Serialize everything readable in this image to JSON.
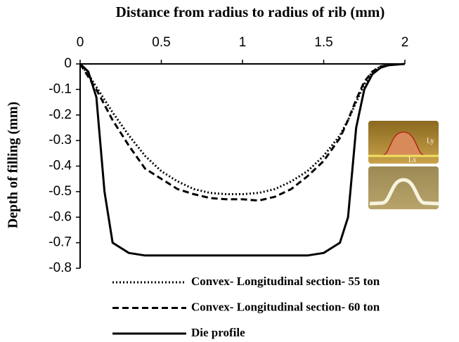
{
  "chart_data": {
    "type": "line",
    "title": "Distance from radius to radius of rib (mm)",
    "y_label": "Depth of filling (mm)",
    "x": [
      0,
      0.05,
      0.1,
      0.15,
      0.2,
      0.3,
      0.4,
      0.5,
      0.6,
      0.7,
      0.8,
      0.9,
      1.0,
      1.1,
      1.2,
      1.3,
      1.4,
      1.5,
      1.6,
      1.65,
      1.7,
      1.75,
      1.8,
      1.85,
      1.9,
      2.0
    ],
    "series": [
      {
        "name": "Convex- Longitudinal section- 55 ton",
        "color": "#000000",
        "dash": "dotted",
        "values": [
          0,
          -0.04,
          -0.09,
          -0.14,
          -0.19,
          -0.28,
          -0.36,
          -0.42,
          -0.46,
          -0.49,
          -0.505,
          -0.51,
          -0.51,
          -0.505,
          -0.49,
          -0.46,
          -0.42,
          -0.36,
          -0.28,
          -0.22,
          -0.15,
          -0.08,
          -0.03,
          -0.01,
          -0.005,
          null
        ]
      },
      {
        "name": "Convex- Longitudinal section- 60 ton",
        "color": "#000000",
        "dash": "dashed",
        "values": [
          0,
          -0.05,
          -0.1,
          -0.16,
          -0.22,
          -0.32,
          -0.41,
          -0.45,
          -0.49,
          -0.51,
          -0.525,
          -0.53,
          -0.53,
          -0.535,
          -0.52,
          -0.49,
          -0.44,
          -0.38,
          -0.29,
          -0.22,
          -0.14,
          -0.07,
          -0.03,
          -0.01,
          -0.005,
          null
        ]
      },
      {
        "name": "Die profile",
        "color": "#000000",
        "dash": "solid",
        "values": [
          0,
          -0.03,
          -0.13,
          -0.5,
          -0.7,
          -0.74,
          -0.75,
          -0.75,
          -0.75,
          -0.75,
          -0.75,
          -0.75,
          -0.75,
          -0.75,
          -0.75,
          -0.75,
          -0.75,
          -0.74,
          -0.7,
          -0.6,
          -0.25,
          -0.1,
          -0.04,
          -0.015,
          -0.005,
          0
        ]
      }
    ],
    "xlim": [
      0,
      2
    ],
    "xticks": [
      0,
      0.5,
      1,
      1.5,
      2
    ],
    "ylim": [
      -0.8,
      0
    ],
    "yticks": [
      0,
      -0.1,
      -0.2,
      -0.3,
      -0.4,
      -0.5,
      -0.6,
      -0.7,
      -0.8
    ],
    "x_axis_position": "top",
    "inset_labels": [
      "Ly",
      "Lx"
    ]
  }
}
